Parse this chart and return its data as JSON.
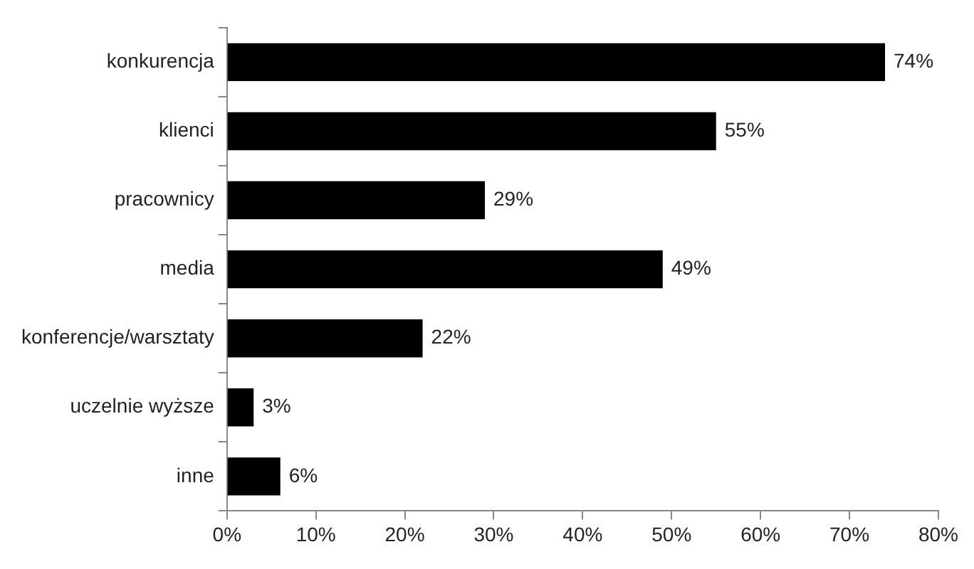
{
  "chart_data": {
    "type": "bar",
    "orientation": "horizontal",
    "categories": [
      "konkurencja",
      "klienci",
      "pracownicy",
      "media",
      "konferencje/warsztaty",
      "uczelnie wyższe",
      "inne"
    ],
    "values": [
      74,
      55,
      29,
      49,
      22,
      3,
      6
    ],
    "value_labels": [
      "74%",
      "55%",
      "29%",
      "49%",
      "22%",
      "3%",
      "6%"
    ],
    "color": "#000000",
    "xlim": [
      0,
      80
    ],
    "xticks": [
      {
        "value": 0,
        "label": "0%"
      },
      {
        "value": 10,
        "label": "10%"
      },
      {
        "value": 20,
        "label": "20%"
      },
      {
        "value": 30,
        "label": "30%"
      },
      {
        "value": 40,
        "label": "40%"
      },
      {
        "value": 50,
        "label": "50%"
      },
      {
        "value": 60,
        "label": "60%"
      },
      {
        "value": 70,
        "label": "70%"
      },
      {
        "value": 80,
        "label": "80%"
      }
    ],
    "grid": false,
    "legend": false
  }
}
